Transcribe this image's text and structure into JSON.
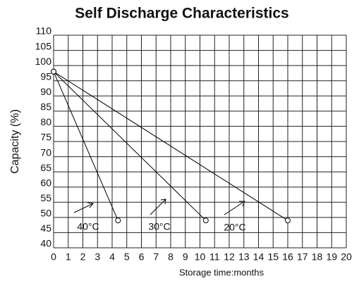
{
  "chart_data": {
    "type": "line",
    "title": "Self Discharge Characteristics",
    "xlabel": "Storage time:months",
    "ylabel": "Capacity (%)",
    "series": [
      {
        "name": "40°C",
        "color": "#000000",
        "x": [
          0,
          4.4
        ],
        "values": [
          98,
          49
        ]
      },
      {
        "name": "30°C",
        "color": "#000000",
        "x": [
          0,
          10.4
        ],
        "values": [
          98,
          49
        ]
      },
      {
        "name": "20°C",
        "color": "#000000",
        "x": [
          0,
          16
        ],
        "values": [
          98,
          49
        ]
      }
    ],
    "xlim": [
      0,
      20
    ],
    "xticks": [
      0,
      1,
      2,
      3,
      4,
      5,
      6,
      7,
      8,
      9,
      10,
      11,
      12,
      13,
      14,
      15,
      16,
      17,
      18,
      19,
      20
    ],
    "ylim": [
      40,
      110
    ],
    "yticks": [
      40,
      45,
      50,
      55,
      60,
      65,
      70,
      75,
      80,
      85,
      90,
      95,
      100,
      105,
      110
    ],
    "grid": true
  }
}
